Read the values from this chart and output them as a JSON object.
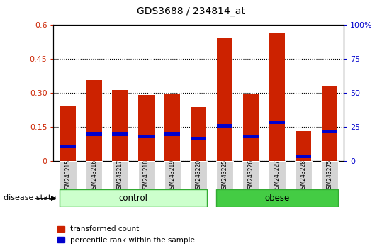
{
  "title": "GDS3688 / 234814_at",
  "categories": [
    "GSM243215",
    "GSM243216",
    "GSM243217",
    "GSM243218",
    "GSM243219",
    "GSM243220",
    "GSM243225",
    "GSM243226",
    "GSM243227",
    "GSM243228",
    "GSM243275"
  ],
  "red_values": [
    0.245,
    0.355,
    0.313,
    0.292,
    0.298,
    0.238,
    0.545,
    0.293,
    0.568,
    0.13,
    0.33
  ],
  "blue_values": [
    0.062,
    0.118,
    0.118,
    0.108,
    0.118,
    0.098,
    0.154,
    0.106,
    0.17,
    0.018,
    0.128
  ],
  "ylim_left": [
    0,
    0.6
  ],
  "ylim_right": [
    0,
    100
  ],
  "yticks_left": [
    0,
    0.15,
    0.3,
    0.45,
    0.6
  ],
  "yticks_right": [
    0,
    25,
    50,
    75,
    100
  ],
  "left_tick_labels": [
    "0",
    "0.15",
    "0.30",
    "0.45",
    "0.6"
  ],
  "right_tick_labels": [
    "0",
    "25",
    "50",
    "75",
    "100%"
  ],
  "left_color": "#cc2200",
  "right_color": "#0000cc",
  "bar_color": "#cc2200",
  "blue_marker_color": "#0000cc",
  "grid_color": "black",
  "bg_color": "#ffffff",
  "plot_bg": "#ffffff",
  "control_label": "control",
  "obese_label": "obese",
  "disease_state_label": "disease state",
  "control_color": "#ccffcc",
  "obese_color": "#44cc44",
  "control_indices": [
    0,
    1,
    2,
    3,
    4,
    5
  ],
  "obese_indices": [
    6,
    7,
    8,
    9,
    10
  ],
  "legend_red_label": "transformed count",
  "legend_blue_label": "percentile rank within the sample",
  "bar_width": 0.6,
  "figsize": [
    5.39,
    3.54
  ],
  "dpi": 100
}
